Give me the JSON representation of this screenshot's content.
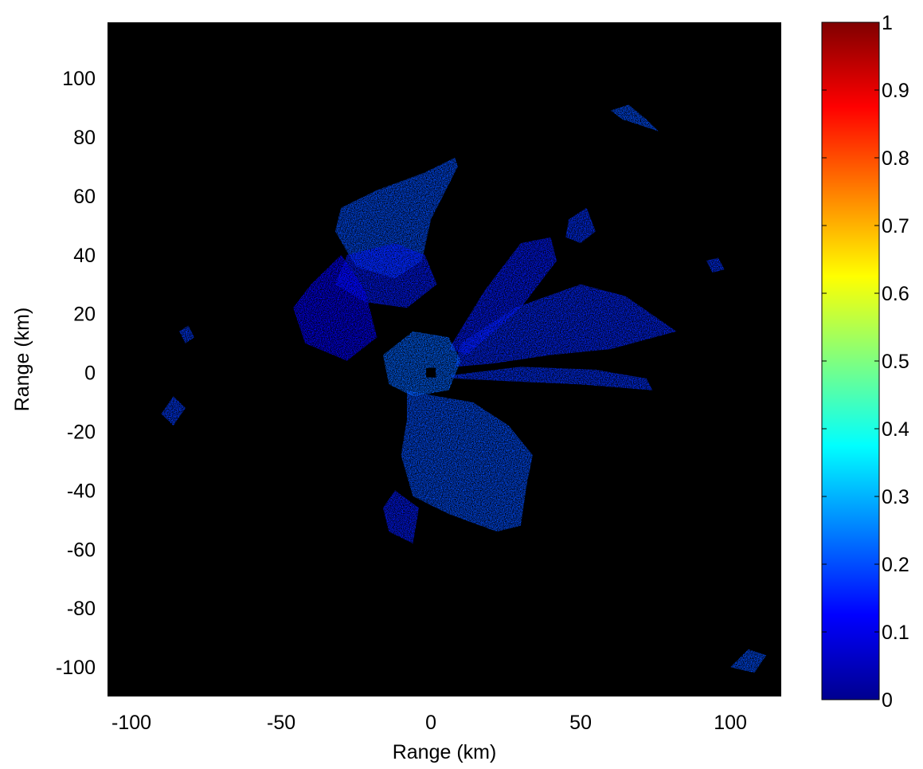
{
  "chart_data": [
    {
      "type": "heatmap",
      "title": "",
      "xlabel": "Range (km)",
      "ylabel": "Range (km)",
      "xlim": [
        -108,
        117
      ],
      "ylim": [
        -110,
        119
      ],
      "xticks": [
        -100,
        -50,
        0,
        50,
        100
      ],
      "yticks": [
        -100,
        -80,
        -60,
        -40,
        -20,
        0,
        20,
        40,
        60,
        80,
        100
      ],
      "background": "#000000",
      "colormap": "jet",
      "grid": false,
      "radar_center": [
        0,
        0
      ],
      "echo_regions": [
        {
          "name": "north-west lobe",
          "value": 0.2,
          "points": [
            [
              -30,
              56
            ],
            [
              -18,
              62
            ],
            [
              -2,
              68
            ],
            [
              8,
              73
            ],
            [
              9,
              70
            ],
            [
              0,
              52
            ],
            [
              -3,
              38
            ],
            [
              -12,
              32
            ],
            [
              -25,
              36
            ],
            [
              -32,
              48
            ]
          ]
        },
        {
          "name": "northern plume",
          "value": 0.15,
          "points": [
            [
              -28,
              40
            ],
            [
              -12,
              44
            ],
            [
              -2,
              40
            ],
            [
              2,
              30
            ],
            [
              -8,
              22
            ],
            [
              -22,
              24
            ],
            [
              -32,
              30
            ]
          ]
        },
        {
          "name": "east-north-east beam",
          "value": 0.16,
          "points": [
            [
              10,
              10
            ],
            [
              28,
              22
            ],
            [
              50,
              30
            ],
            [
              65,
              26
            ],
            [
              82,
              14
            ],
            [
              60,
              8
            ],
            [
              40,
              6
            ],
            [
              20,
              3
            ],
            [
              8,
              2
            ]
          ]
        },
        {
          "name": "north-east beam",
          "value": 0.15,
          "points": [
            [
              6,
              8
            ],
            [
              18,
              28
            ],
            [
              30,
              44
            ],
            [
              40,
              46
            ],
            [
              42,
              38
            ],
            [
              30,
              22
            ],
            [
              12,
              6
            ]
          ]
        },
        {
          "name": "eastern beam",
          "value": 0.17,
          "points": [
            [
              6,
              -1
            ],
            [
              30,
              2
            ],
            [
              55,
              1
            ],
            [
              72,
              -2
            ],
            [
              74,
              -6
            ],
            [
              50,
              -4
            ],
            [
              28,
              -3
            ],
            [
              8,
              -2
            ]
          ]
        },
        {
          "name": "southern lobe",
          "value": 0.2,
          "points": [
            [
              -8,
              -6
            ],
            [
              2,
              -8
            ],
            [
              14,
              -10
            ],
            [
              26,
              -18
            ],
            [
              34,
              -28
            ],
            [
              32,
              -38
            ],
            [
              30,
              -52
            ],
            [
              22,
              -54
            ],
            [
              6,
              -48
            ],
            [
              -6,
              -42
            ],
            [
              -10,
              -28
            ],
            [
              -8,
              -16
            ]
          ]
        },
        {
          "name": "south-west patch",
          "value": 0.15,
          "points": [
            [
              -12,
              -40
            ],
            [
              -4,
              -46
            ],
            [
              -6,
              -58
            ],
            [
              -14,
              -54
            ],
            [
              -16,
              -46
            ]
          ]
        },
        {
          "name": "central cluster",
          "value": 0.22,
          "points": [
            [
              -16,
              6
            ],
            [
              -6,
              14
            ],
            [
              6,
              12
            ],
            [
              10,
              4
            ],
            [
              6,
              -6
            ],
            [
              -6,
              -8
            ],
            [
              -14,
              -4
            ]
          ]
        },
        {
          "name": "western scatter",
          "value": 0.12,
          "points": [
            [
              -40,
              30
            ],
            [
              -30,
              40
            ],
            [
              -22,
              28
            ],
            [
              -18,
              12
            ],
            [
              -28,
              4
            ],
            [
              -42,
              10
            ],
            [
              -46,
              22
            ]
          ]
        },
        {
          "name": "north-east patch",
          "value": 0.17,
          "points": [
            [
              46,
              52
            ],
            [
              52,
              56
            ],
            [
              55,
              48
            ],
            [
              50,
              44
            ],
            [
              45,
              46
            ]
          ]
        },
        {
          "name": "far north-east patch",
          "value": 0.2,
          "points": [
            [
              60,
              89
            ],
            [
              66,
              91
            ],
            [
              72,
              86
            ],
            [
              76,
              82
            ],
            [
              70,
              84
            ],
            [
              64,
              86
            ]
          ]
        },
        {
          "name": "west patch",
          "value": 0.18,
          "points": [
            [
              -90,
              -14
            ],
            [
              -86,
              -8
            ],
            [
              -82,
              -12
            ],
            [
              -86,
              -18
            ]
          ]
        },
        {
          "name": "west small patch",
          "value": 0.18,
          "points": [
            [
              -84,
              14
            ],
            [
              -81,
              16
            ],
            [
              -79,
              12
            ],
            [
              -82,
              10
            ]
          ]
        },
        {
          "name": "far south-east patch",
          "value": 0.2,
          "points": [
            [
              100,
              -100
            ],
            [
              106,
              -94
            ],
            [
              112,
              -96
            ],
            [
              108,
              -102
            ]
          ]
        },
        {
          "name": "east small patch",
          "value": 0.17,
          "points": [
            [
              92,
              38
            ],
            [
              96,
              39
            ],
            [
              98,
              35
            ],
            [
              94,
              34
            ]
          ]
        }
      ],
      "colorbar": {
        "min": 0,
        "max": 1,
        "ticks": [
          0,
          0.1,
          0.2,
          0.3,
          0.4,
          0.5,
          0.6,
          0.7,
          0.8,
          0.9,
          1
        ],
        "tick_labels": [
          "0",
          "0.1",
          "0.2",
          "0.3",
          "0.4",
          "0.5",
          "0.6",
          "0.7",
          "0.8",
          "0.9",
          "1"
        ]
      }
    }
  ]
}
